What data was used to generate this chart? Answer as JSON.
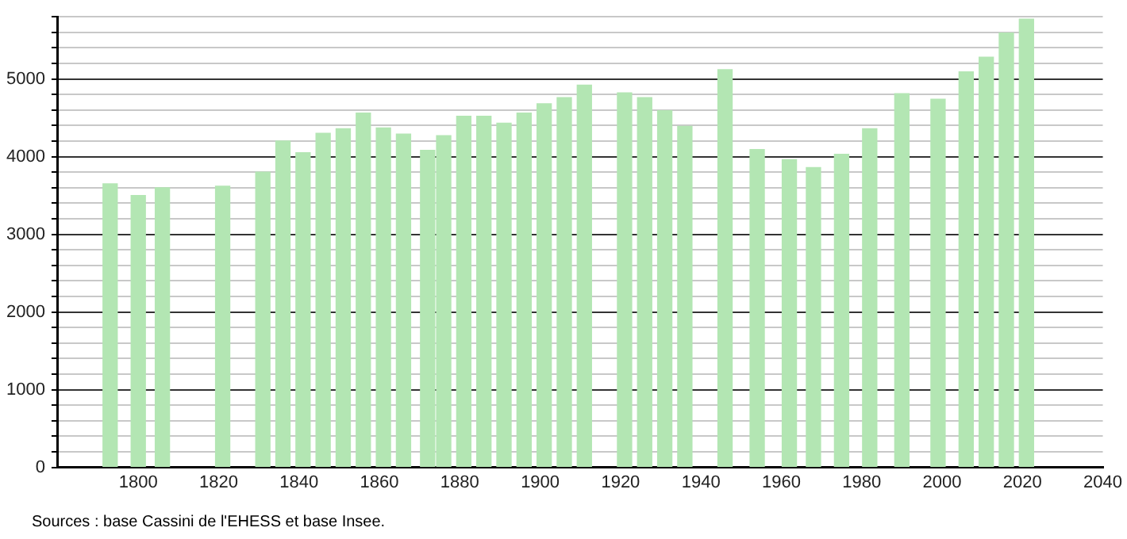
{
  "chart_data": {
    "type": "bar",
    "x": [
      1793,
      1800,
      1806,
      1821,
      1831,
      1836,
      1841,
      1846,
      1851,
      1856,
      1861,
      1866,
      1872,
      1876,
      1881,
      1886,
      1891,
      1896,
      1901,
      1906,
      1911,
      1921,
      1926,
      1931,
      1936,
      1946,
      1954,
      1962,
      1968,
      1975,
      1982,
      1990,
      1999,
      2006,
      2011,
      2016,
      2021
    ],
    "values": [
      3650,
      3500,
      3600,
      3620,
      3800,
      4200,
      4050,
      4300,
      4360,
      4560,
      4370,
      4290,
      4080,
      4270,
      4520,
      4520,
      4430,
      4560,
      4680,
      4760,
      4920,
      4820,
      4760,
      4590,
      4390,
      5120,
      4090,
      3960,
      3860,
      4030,
      4360,
      4810,
      4740,
      5090,
      5280,
      5590,
      5770
    ],
    "color": "#b3e6b3",
    "xlim": [
      1780,
      2040
    ],
    "xticks": [
      1800,
      1820,
      1840,
      1860,
      1880,
      1900,
      1920,
      1940,
      1960,
      1980,
      2000,
      2020,
      2040
    ],
    "ylim": [
      0,
      5800
    ],
    "yticks": [
      0,
      {
        "value": 200,
        "label": null
      },
      {
        "value": 400,
        "label": null
      },
      {
        "value": 600,
        "label": null
      },
      {
        "value": 800,
        "label": null
      },
      1000,
      {
        "value": 1200,
        "label": null
      },
      {
        "value": 1400,
        "label": null
      },
      {
        "value": 1600,
        "label": null
      },
      {
        "value": 1800,
        "label": null
      },
      2000,
      {
        "value": 2200,
        "label": null
      },
      {
        "value": 2400,
        "label": null
      },
      {
        "value": 2600,
        "label": null
      },
      {
        "value": 2800,
        "label": null
      },
      3000,
      {
        "value": 3200,
        "label": null
      },
      {
        "value": 3400,
        "label": null
      },
      {
        "value": 3600,
        "label": null
      },
      {
        "value": 3800,
        "label": null
      },
      4000,
      {
        "value": 4200,
        "label": null
      },
      {
        "value": 4400,
        "label": null
      },
      {
        "value": 4600,
        "label": null
      },
      {
        "value": 4800,
        "label": null
      },
      5000,
      {
        "value": 5200,
        "label": null
      },
      {
        "value": 5400,
        "label": null
      },
      {
        "value": 5600,
        "label": null
      },
      {
        "value": 5800,
        "label": null
      }
    ],
    "grid": "y",
    "legend": false,
    "annotations": [
      "Sources : base Cassini de l'EHESS et base Insee."
    ]
  }
}
